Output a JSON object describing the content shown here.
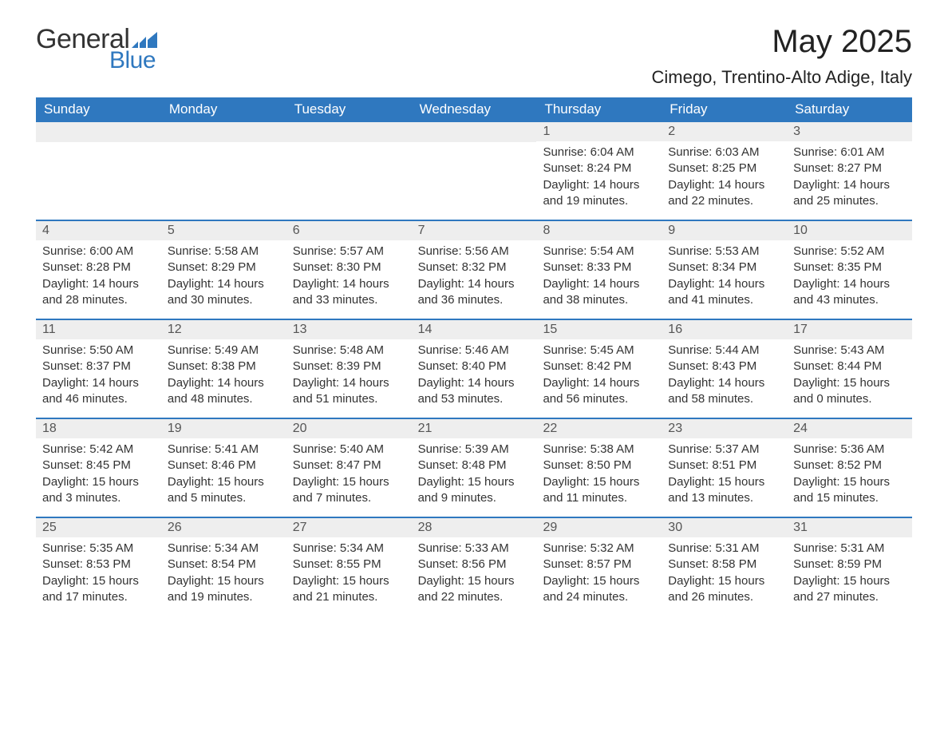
{
  "brand": {
    "text_general": "General",
    "text_blue": "Blue",
    "icon_color": "#2f78bf"
  },
  "title": "May 2025",
  "location": "Cimego, Trentino-Alto Adige, Italy",
  "colors": {
    "header_bg": "#2f78bf",
    "row_divider": "#2f78bf",
    "daynum_bg": "#eeeeee",
    "text": "#333333",
    "page_bg": "#ffffff"
  },
  "days_of_week": [
    "Sunday",
    "Monday",
    "Tuesday",
    "Wednesday",
    "Thursday",
    "Friday",
    "Saturday"
  ],
  "weeks": [
    [
      {
        "n": "",
        "sunrise": "",
        "sunset": "",
        "daylight": ""
      },
      {
        "n": "",
        "sunrise": "",
        "sunset": "",
        "daylight": ""
      },
      {
        "n": "",
        "sunrise": "",
        "sunset": "",
        "daylight": ""
      },
      {
        "n": "",
        "sunrise": "",
        "sunset": "",
        "daylight": ""
      },
      {
        "n": "1",
        "sunrise": "Sunrise: 6:04 AM",
        "sunset": "Sunset: 8:24 PM",
        "daylight": "Daylight: 14 hours and 19 minutes."
      },
      {
        "n": "2",
        "sunrise": "Sunrise: 6:03 AM",
        "sunset": "Sunset: 8:25 PM",
        "daylight": "Daylight: 14 hours and 22 minutes."
      },
      {
        "n": "3",
        "sunrise": "Sunrise: 6:01 AM",
        "sunset": "Sunset: 8:27 PM",
        "daylight": "Daylight: 14 hours and 25 minutes."
      }
    ],
    [
      {
        "n": "4",
        "sunrise": "Sunrise: 6:00 AM",
        "sunset": "Sunset: 8:28 PM",
        "daylight": "Daylight: 14 hours and 28 minutes."
      },
      {
        "n": "5",
        "sunrise": "Sunrise: 5:58 AM",
        "sunset": "Sunset: 8:29 PM",
        "daylight": "Daylight: 14 hours and 30 minutes."
      },
      {
        "n": "6",
        "sunrise": "Sunrise: 5:57 AM",
        "sunset": "Sunset: 8:30 PM",
        "daylight": "Daylight: 14 hours and 33 minutes."
      },
      {
        "n": "7",
        "sunrise": "Sunrise: 5:56 AM",
        "sunset": "Sunset: 8:32 PM",
        "daylight": "Daylight: 14 hours and 36 minutes."
      },
      {
        "n": "8",
        "sunrise": "Sunrise: 5:54 AM",
        "sunset": "Sunset: 8:33 PM",
        "daylight": "Daylight: 14 hours and 38 minutes."
      },
      {
        "n": "9",
        "sunrise": "Sunrise: 5:53 AM",
        "sunset": "Sunset: 8:34 PM",
        "daylight": "Daylight: 14 hours and 41 minutes."
      },
      {
        "n": "10",
        "sunrise": "Sunrise: 5:52 AM",
        "sunset": "Sunset: 8:35 PM",
        "daylight": "Daylight: 14 hours and 43 minutes."
      }
    ],
    [
      {
        "n": "11",
        "sunrise": "Sunrise: 5:50 AM",
        "sunset": "Sunset: 8:37 PM",
        "daylight": "Daylight: 14 hours and 46 minutes."
      },
      {
        "n": "12",
        "sunrise": "Sunrise: 5:49 AM",
        "sunset": "Sunset: 8:38 PM",
        "daylight": "Daylight: 14 hours and 48 minutes."
      },
      {
        "n": "13",
        "sunrise": "Sunrise: 5:48 AM",
        "sunset": "Sunset: 8:39 PM",
        "daylight": "Daylight: 14 hours and 51 minutes."
      },
      {
        "n": "14",
        "sunrise": "Sunrise: 5:46 AM",
        "sunset": "Sunset: 8:40 PM",
        "daylight": "Daylight: 14 hours and 53 minutes."
      },
      {
        "n": "15",
        "sunrise": "Sunrise: 5:45 AM",
        "sunset": "Sunset: 8:42 PM",
        "daylight": "Daylight: 14 hours and 56 minutes."
      },
      {
        "n": "16",
        "sunrise": "Sunrise: 5:44 AM",
        "sunset": "Sunset: 8:43 PM",
        "daylight": "Daylight: 14 hours and 58 minutes."
      },
      {
        "n": "17",
        "sunrise": "Sunrise: 5:43 AM",
        "sunset": "Sunset: 8:44 PM",
        "daylight": "Daylight: 15 hours and 0 minutes."
      }
    ],
    [
      {
        "n": "18",
        "sunrise": "Sunrise: 5:42 AM",
        "sunset": "Sunset: 8:45 PM",
        "daylight": "Daylight: 15 hours and 3 minutes."
      },
      {
        "n": "19",
        "sunrise": "Sunrise: 5:41 AM",
        "sunset": "Sunset: 8:46 PM",
        "daylight": "Daylight: 15 hours and 5 minutes."
      },
      {
        "n": "20",
        "sunrise": "Sunrise: 5:40 AM",
        "sunset": "Sunset: 8:47 PM",
        "daylight": "Daylight: 15 hours and 7 minutes."
      },
      {
        "n": "21",
        "sunrise": "Sunrise: 5:39 AM",
        "sunset": "Sunset: 8:48 PM",
        "daylight": "Daylight: 15 hours and 9 minutes."
      },
      {
        "n": "22",
        "sunrise": "Sunrise: 5:38 AM",
        "sunset": "Sunset: 8:50 PM",
        "daylight": "Daylight: 15 hours and 11 minutes."
      },
      {
        "n": "23",
        "sunrise": "Sunrise: 5:37 AM",
        "sunset": "Sunset: 8:51 PM",
        "daylight": "Daylight: 15 hours and 13 minutes."
      },
      {
        "n": "24",
        "sunrise": "Sunrise: 5:36 AM",
        "sunset": "Sunset: 8:52 PM",
        "daylight": "Daylight: 15 hours and 15 minutes."
      }
    ],
    [
      {
        "n": "25",
        "sunrise": "Sunrise: 5:35 AM",
        "sunset": "Sunset: 8:53 PM",
        "daylight": "Daylight: 15 hours and 17 minutes."
      },
      {
        "n": "26",
        "sunrise": "Sunrise: 5:34 AM",
        "sunset": "Sunset: 8:54 PM",
        "daylight": "Daylight: 15 hours and 19 minutes."
      },
      {
        "n": "27",
        "sunrise": "Sunrise: 5:34 AM",
        "sunset": "Sunset: 8:55 PM",
        "daylight": "Daylight: 15 hours and 21 minutes."
      },
      {
        "n": "28",
        "sunrise": "Sunrise: 5:33 AM",
        "sunset": "Sunset: 8:56 PM",
        "daylight": "Daylight: 15 hours and 22 minutes."
      },
      {
        "n": "29",
        "sunrise": "Sunrise: 5:32 AM",
        "sunset": "Sunset: 8:57 PM",
        "daylight": "Daylight: 15 hours and 24 minutes."
      },
      {
        "n": "30",
        "sunrise": "Sunrise: 5:31 AM",
        "sunset": "Sunset: 8:58 PM",
        "daylight": "Daylight: 15 hours and 26 minutes."
      },
      {
        "n": "31",
        "sunrise": "Sunrise: 5:31 AM",
        "sunset": "Sunset: 8:59 PM",
        "daylight": "Daylight: 15 hours and 27 minutes."
      }
    ]
  ]
}
